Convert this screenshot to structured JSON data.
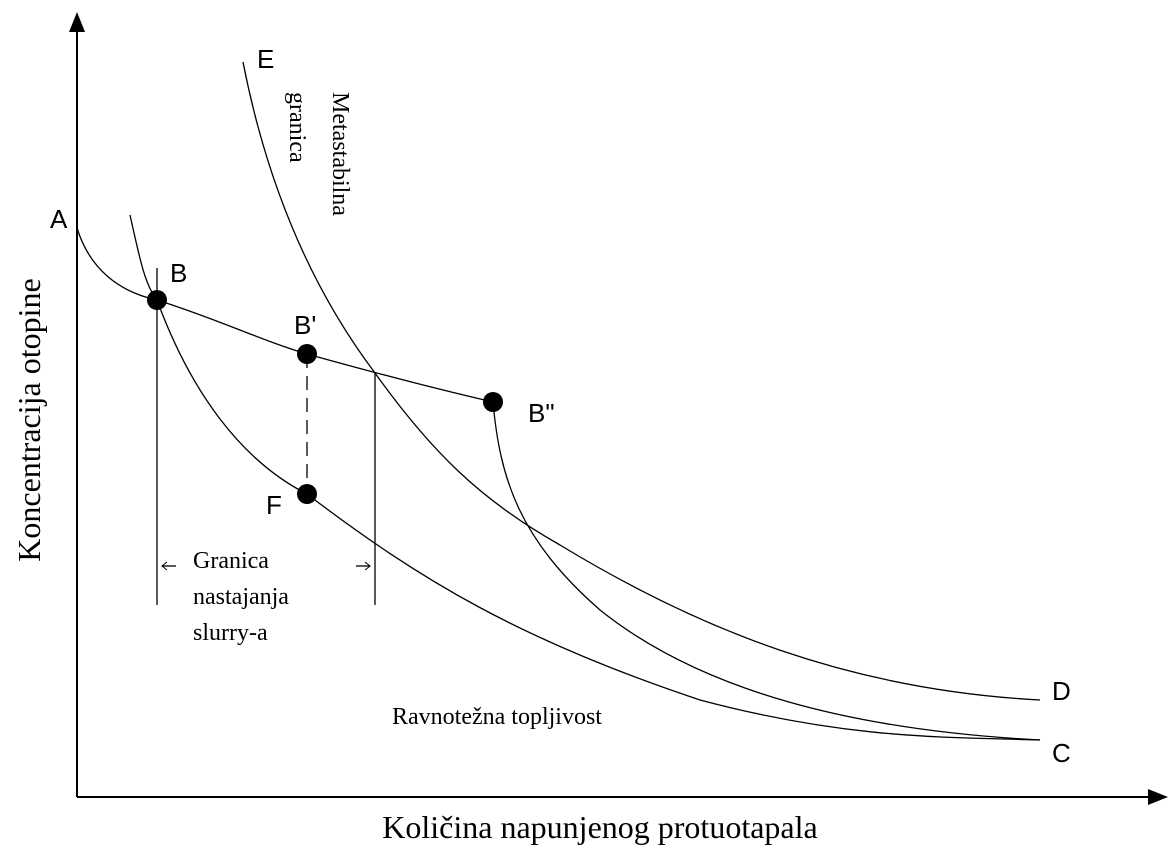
{
  "axes": {
    "y_label": "Koncentracija otopine",
    "x_label": "Količina napunjenog protuotapala"
  },
  "points": {
    "A": "A",
    "B": "B",
    "B1": "B'",
    "B2": "B\"",
    "F": "F",
    "E": "E",
    "D": "D",
    "C": "C"
  },
  "annotations": {
    "metastable": [
      "Metastabilna",
      "granica"
    ],
    "slurry": [
      "Granica",
      "nastajanja",
      "slurry-a"
    ],
    "equilibrium": "Ravnotežna topljivost"
  }
}
